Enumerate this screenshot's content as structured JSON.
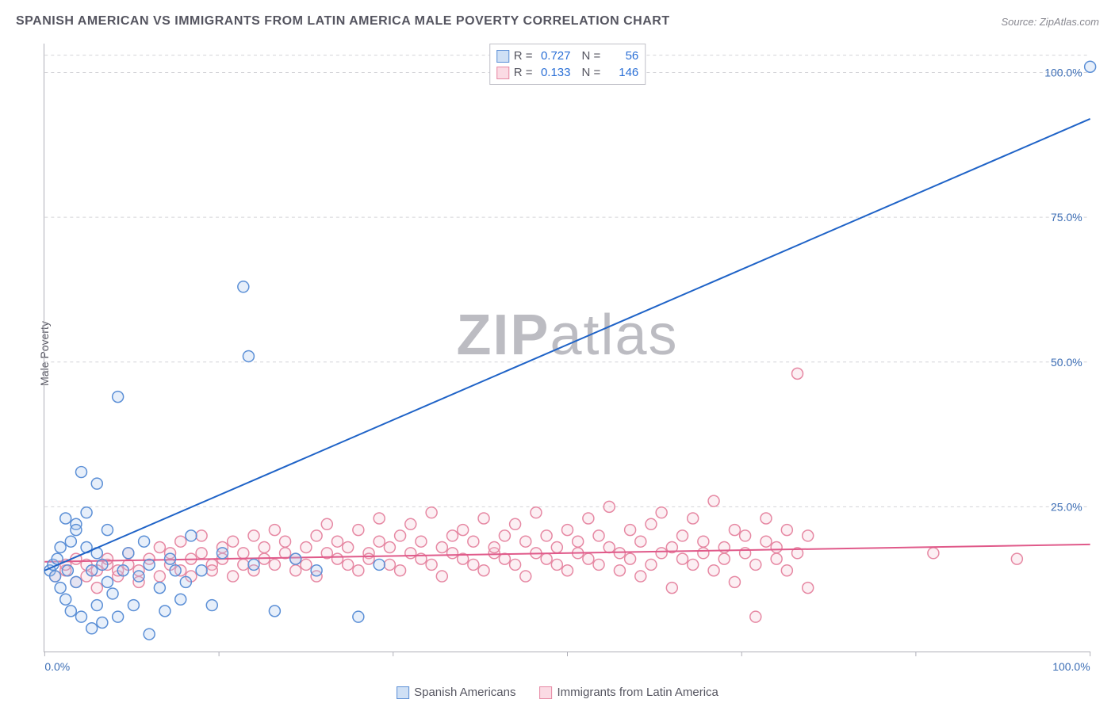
{
  "header": {
    "title": "SPANISH AMERICAN VS IMMIGRANTS FROM LATIN AMERICA MALE POVERTY CORRELATION CHART",
    "source_prefix": "Source: ",
    "source": "ZipAtlas.com"
  },
  "ylabel": "Male Poverty",
  "watermark": {
    "bold": "ZIP",
    "rest": "atlas"
  },
  "chart": {
    "type": "scatter",
    "background_color": "#ffffff",
    "xlim": [
      0,
      100
    ],
    "ylim": [
      0,
      105
    ],
    "xtick_positions": [
      0,
      16.67,
      33.33,
      50,
      66.67,
      83.33,
      100
    ],
    "xtick_labels": [
      "0.0%",
      "",
      "",
      "",
      "",
      "",
      "100.0%"
    ],
    "xtick_label_color": "#3b6db5",
    "ytick_positions": [
      25,
      50,
      75,
      100
    ],
    "ytick_labels": [
      "25.0%",
      "50.0%",
      "75.0%",
      "100.0%"
    ],
    "ytick_label_color": "#3b6db5",
    "grid_color": "#d4d4d8",
    "axis_color": "#b0b0b8",
    "marker_radius": 7,
    "marker_stroke_width": 1.5,
    "marker_fill_opacity": 0.28,
    "trend_line_width": 2,
    "label_fontsize": 14,
    "title_fontsize": 16,
    "series": [
      {
        "name": "Spanish Americans",
        "color_stroke": "#5b8fd6",
        "color_fill": "#a9c6ec",
        "trend_color": "#1f63c7",
        "swatch_fill": "#cfe0f5",
        "swatch_border": "#5b8fd6",
        "R": "0.727",
        "N": "56",
        "trend": {
          "x1": 0,
          "y1": 14,
          "x2": 100,
          "y2": 92
        },
        "points": [
          [
            0.5,
            14
          ],
          [
            0.8,
            15
          ],
          [
            1,
            13
          ],
          [
            1.2,
            16
          ],
          [
            1.5,
            11
          ],
          [
            1.5,
            18
          ],
          [
            2,
            23
          ],
          [
            2,
            9
          ],
          [
            2.2,
            14
          ],
          [
            2.5,
            19
          ],
          [
            2.5,
            7
          ],
          [
            3,
            22
          ],
          [
            3,
            21
          ],
          [
            3,
            12
          ],
          [
            3.5,
            31
          ],
          [
            3.5,
            6
          ],
          [
            4,
            18
          ],
          [
            4,
            24
          ],
          [
            4.5,
            14
          ],
          [
            4.5,
            4
          ],
          [
            5,
            17
          ],
          [
            5,
            29
          ],
          [
            5,
            8
          ],
          [
            5.5,
            15
          ],
          [
            5.5,
            5
          ],
          [
            6,
            12
          ],
          [
            6,
            21
          ],
          [
            6.5,
            10
          ],
          [
            7,
            44
          ],
          [
            7,
            6
          ],
          [
            7.5,
            14
          ],
          [
            8,
            17
          ],
          [
            8.5,
            8
          ],
          [
            9,
            13
          ],
          [
            9.5,
            19
          ],
          [
            10,
            3
          ],
          [
            10,
            15
          ],
          [
            11,
            11
          ],
          [
            11.5,
            7
          ],
          [
            12,
            16
          ],
          [
            12.5,
            14
          ],
          [
            13,
            9
          ],
          [
            13.5,
            12
          ],
          [
            14,
            20
          ],
          [
            15,
            14
          ],
          [
            16,
            8
          ],
          [
            17,
            17
          ],
          [
            19,
            63
          ],
          [
            19.5,
            51
          ],
          [
            20,
            15
          ],
          [
            22,
            7
          ],
          [
            24,
            16
          ],
          [
            26,
            14
          ],
          [
            30,
            6
          ],
          [
            32,
            15
          ],
          [
            100,
            101
          ]
        ]
      },
      {
        "name": "Immigrants from Latin America",
        "color_stroke": "#e688a3",
        "color_fill": "#f6c6d3",
        "trend_color": "#e05a8a",
        "swatch_fill": "#fbdbe4",
        "swatch_border": "#e688a3",
        "R": "0.133",
        "N": "146",
        "trend": {
          "x1": 0,
          "y1": 15.5,
          "x2": 100,
          "y2": 18.5
        },
        "points": [
          [
            1,
            13
          ],
          [
            2,
            14
          ],
          [
            2,
            15
          ],
          [
            3,
            12
          ],
          [
            3,
            16
          ],
          [
            4,
            13
          ],
          [
            4,
            15
          ],
          [
            5,
            14
          ],
          [
            5,
            11
          ],
          [
            6,
            15
          ],
          [
            6,
            16
          ],
          [
            7,
            13
          ],
          [
            7,
            14
          ],
          [
            8,
            15
          ],
          [
            8,
            17
          ],
          [
            9,
            14
          ],
          [
            9,
            12
          ],
          [
            10,
            16
          ],
          [
            11,
            18
          ],
          [
            11,
            13
          ],
          [
            12,
            15
          ],
          [
            12,
            17
          ],
          [
            13,
            14
          ],
          [
            13,
            19
          ],
          [
            14,
            16
          ],
          [
            14,
            13
          ],
          [
            15,
            17
          ],
          [
            15,
            20
          ],
          [
            16,
            15
          ],
          [
            16,
            14
          ],
          [
            17,
            18
          ],
          [
            17,
            16
          ],
          [
            18,
            13
          ],
          [
            18,
            19
          ],
          [
            19,
            17
          ],
          [
            19,
            15
          ],
          [
            20,
            20
          ],
          [
            20,
            14
          ],
          [
            21,
            16
          ],
          [
            21,
            18
          ],
          [
            22,
            15
          ],
          [
            22,
            21
          ],
          [
            23,
            17
          ],
          [
            23,
            19
          ],
          [
            24,
            14
          ],
          [
            24,
            16
          ],
          [
            25,
            18
          ],
          [
            25,
            15
          ],
          [
            26,
            20
          ],
          [
            26,
            13
          ],
          [
            27,
            17
          ],
          [
            27,
            22
          ],
          [
            28,
            16
          ],
          [
            28,
            19
          ],
          [
            29,
            15
          ],
          [
            29,
            18
          ],
          [
            30,
            21
          ],
          [
            30,
            14
          ],
          [
            31,
            17
          ],
          [
            31,
            16
          ],
          [
            32,
            19
          ],
          [
            32,
            23
          ],
          [
            33,
            15
          ],
          [
            33,
            18
          ],
          [
            34,
            20
          ],
          [
            34,
            14
          ],
          [
            35,
            17
          ],
          [
            35,
            22
          ],
          [
            36,
            16
          ],
          [
            36,
            19
          ],
          [
            37,
            15
          ],
          [
            37,
            24
          ],
          [
            38,
            18
          ],
          [
            38,
            13
          ],
          [
            39,
            20
          ],
          [
            39,
            17
          ],
          [
            40,
            16
          ],
          [
            40,
            21
          ],
          [
            41,
            15
          ],
          [
            41,
            19
          ],
          [
            42,
            23
          ],
          [
            42,
            14
          ],
          [
            43,
            17
          ],
          [
            43,
            18
          ],
          [
            44,
            20
          ],
          [
            44,
            16
          ],
          [
            45,
            22
          ],
          [
            45,
            15
          ],
          [
            46,
            19
          ],
          [
            46,
            13
          ],
          [
            47,
            17
          ],
          [
            47,
            24
          ],
          [
            48,
            16
          ],
          [
            48,
            20
          ],
          [
            49,
            18
          ],
          [
            49,
            15
          ],
          [
            50,
            21
          ],
          [
            50,
            14
          ],
          [
            51,
            19
          ],
          [
            51,
            17
          ],
          [
            52,
            23
          ],
          [
            52,
            16
          ],
          [
            53,
            15
          ],
          [
            53,
            20
          ],
          [
            54,
            18
          ],
          [
            54,
            25
          ],
          [
            55,
            14
          ],
          [
            55,
            17
          ],
          [
            56,
            21
          ],
          [
            56,
            16
          ],
          [
            57,
            19
          ],
          [
            57,
            13
          ],
          [
            58,
            22
          ],
          [
            58,
            15
          ],
          [
            59,
            17
          ],
          [
            59,
            24
          ],
          [
            60,
            18
          ],
          [
            60,
            11
          ],
          [
            61,
            20
          ],
          [
            61,
            16
          ],
          [
            62,
            15
          ],
          [
            62,
            23
          ],
          [
            63,
            17
          ],
          [
            63,
            19
          ],
          [
            64,
            14
          ],
          [
            64,
            26
          ],
          [
            65,
            18
          ],
          [
            65,
            16
          ],
          [
            66,
            21
          ],
          [
            66,
            12
          ],
          [
            67,
            17
          ],
          [
            67,
            20
          ],
          [
            68,
            15
          ],
          [
            68,
            6
          ],
          [
            69,
            19
          ],
          [
            69,
            23
          ],
          [
            70,
            16
          ],
          [
            70,
            18
          ],
          [
            71,
            14
          ],
          [
            71,
            21
          ],
          [
            72,
            17
          ],
          [
            72,
            48
          ],
          [
            73,
            20
          ],
          [
            73,
            11
          ],
          [
            85,
            17
          ],
          [
            93,
            16
          ]
        ]
      }
    ]
  },
  "stats_legend": {
    "R_label": "R =",
    "N_label": "N =",
    "value_color": "#2a6fd6"
  },
  "bottom_legend": {
    "item1": "Spanish Americans",
    "item2": "Immigrants from Latin America"
  }
}
